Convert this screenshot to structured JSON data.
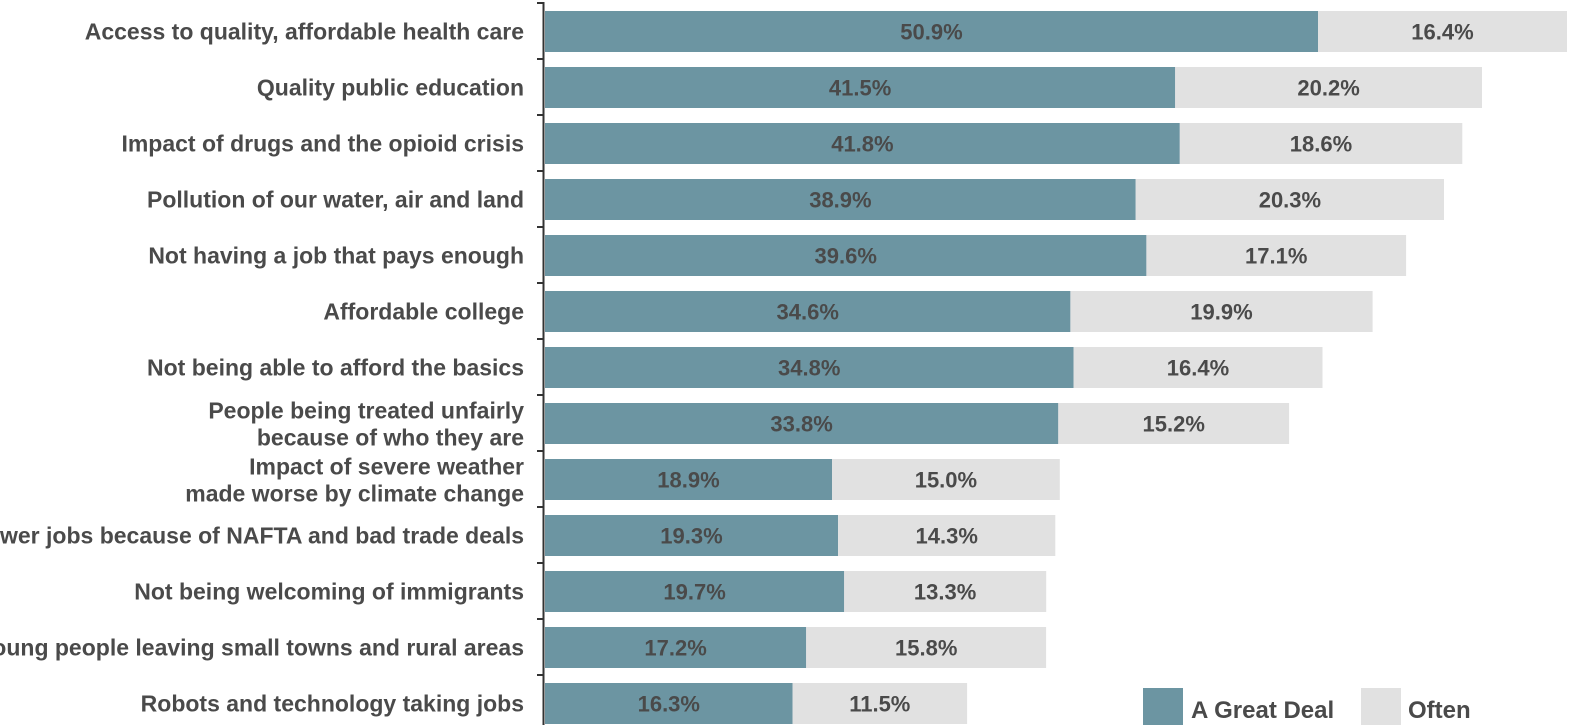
{
  "colors": {
    "great_deal": "#6c95a2",
    "often": "#e1e1e1",
    "text": "#4a4a4a",
    "axis": "#333333"
  },
  "chart_data": {
    "type": "bar",
    "orientation": "horizontal",
    "stacked": true,
    "title": "",
    "xlabel": "",
    "ylabel": "",
    "grid": false,
    "legend_position": "bottom-right",
    "categories": [
      "Access to quality, affordable health care",
      "Quality public education",
      "Impact of drugs and the opioid crisis",
      "Pollution of our water, air and land",
      "Not having a job that pays enough",
      "Affordable college",
      "Not being able to afford the basics",
      "People being treated unfairly because of who they are",
      "Impact of severe weather made worse by climate change",
      "Fewer jobs because of NAFTA and bad trade deals",
      "Not being welcoming of immigrants",
      "Young people leaving small towns and rural areas",
      "Robots and technology taking jobs"
    ],
    "category_lines": [
      [
        "Access to quality, affordable health care"
      ],
      [
        "Quality public education"
      ],
      [
        "Impact of drugs and the opioid crisis"
      ],
      [
        "Pollution of our water, air and land"
      ],
      [
        "Not having a job that pays enough"
      ],
      [
        "Affordable college"
      ],
      [
        "Not being able to afford the basics"
      ],
      [
        "People being treated unfairly",
        "because of who they are"
      ],
      [
        "Impact of severe weather",
        "made worse by climate change"
      ],
      [
        "Fewer jobs because of NAFTA and bad trade deals"
      ],
      [
        "Not being welcoming of immigrants"
      ],
      [
        "Young people leaving small towns and rural areas"
      ],
      [
        "Robots and technology taking jobs"
      ]
    ],
    "series": [
      {
        "name": "A Great Deal",
        "values": [
          50.9,
          41.5,
          41.8,
          38.9,
          39.6,
          34.6,
          34.8,
          33.8,
          18.9,
          19.3,
          19.7,
          17.2,
          16.3
        ],
        "labels": [
          "50.9%",
          "41.5%",
          "41.8%",
          "38.9%",
          "39.6%",
          "34.6%",
          "34.8%",
          "33.8%",
          "18.9%",
          "19.3%",
          "19.7%",
          "17.2%",
          "16.3%"
        ]
      },
      {
        "name": "Often",
        "values": [
          16.4,
          20.2,
          18.6,
          20.3,
          17.1,
          19.9,
          16.4,
          15.2,
          15.0,
          14.3,
          13.3,
          15.8,
          11.5
        ],
        "labels": [
          "16.4%",
          "20.2%",
          "18.6%",
          "20.3%",
          "17.1%",
          "19.9%",
          "16.4%",
          "15.2%",
          "15.0%",
          "14.3%",
          "13.3%",
          "15.8%",
          "11.5%"
        ]
      }
    ],
    "xlim": [
      0,
      67.3
    ]
  }
}
